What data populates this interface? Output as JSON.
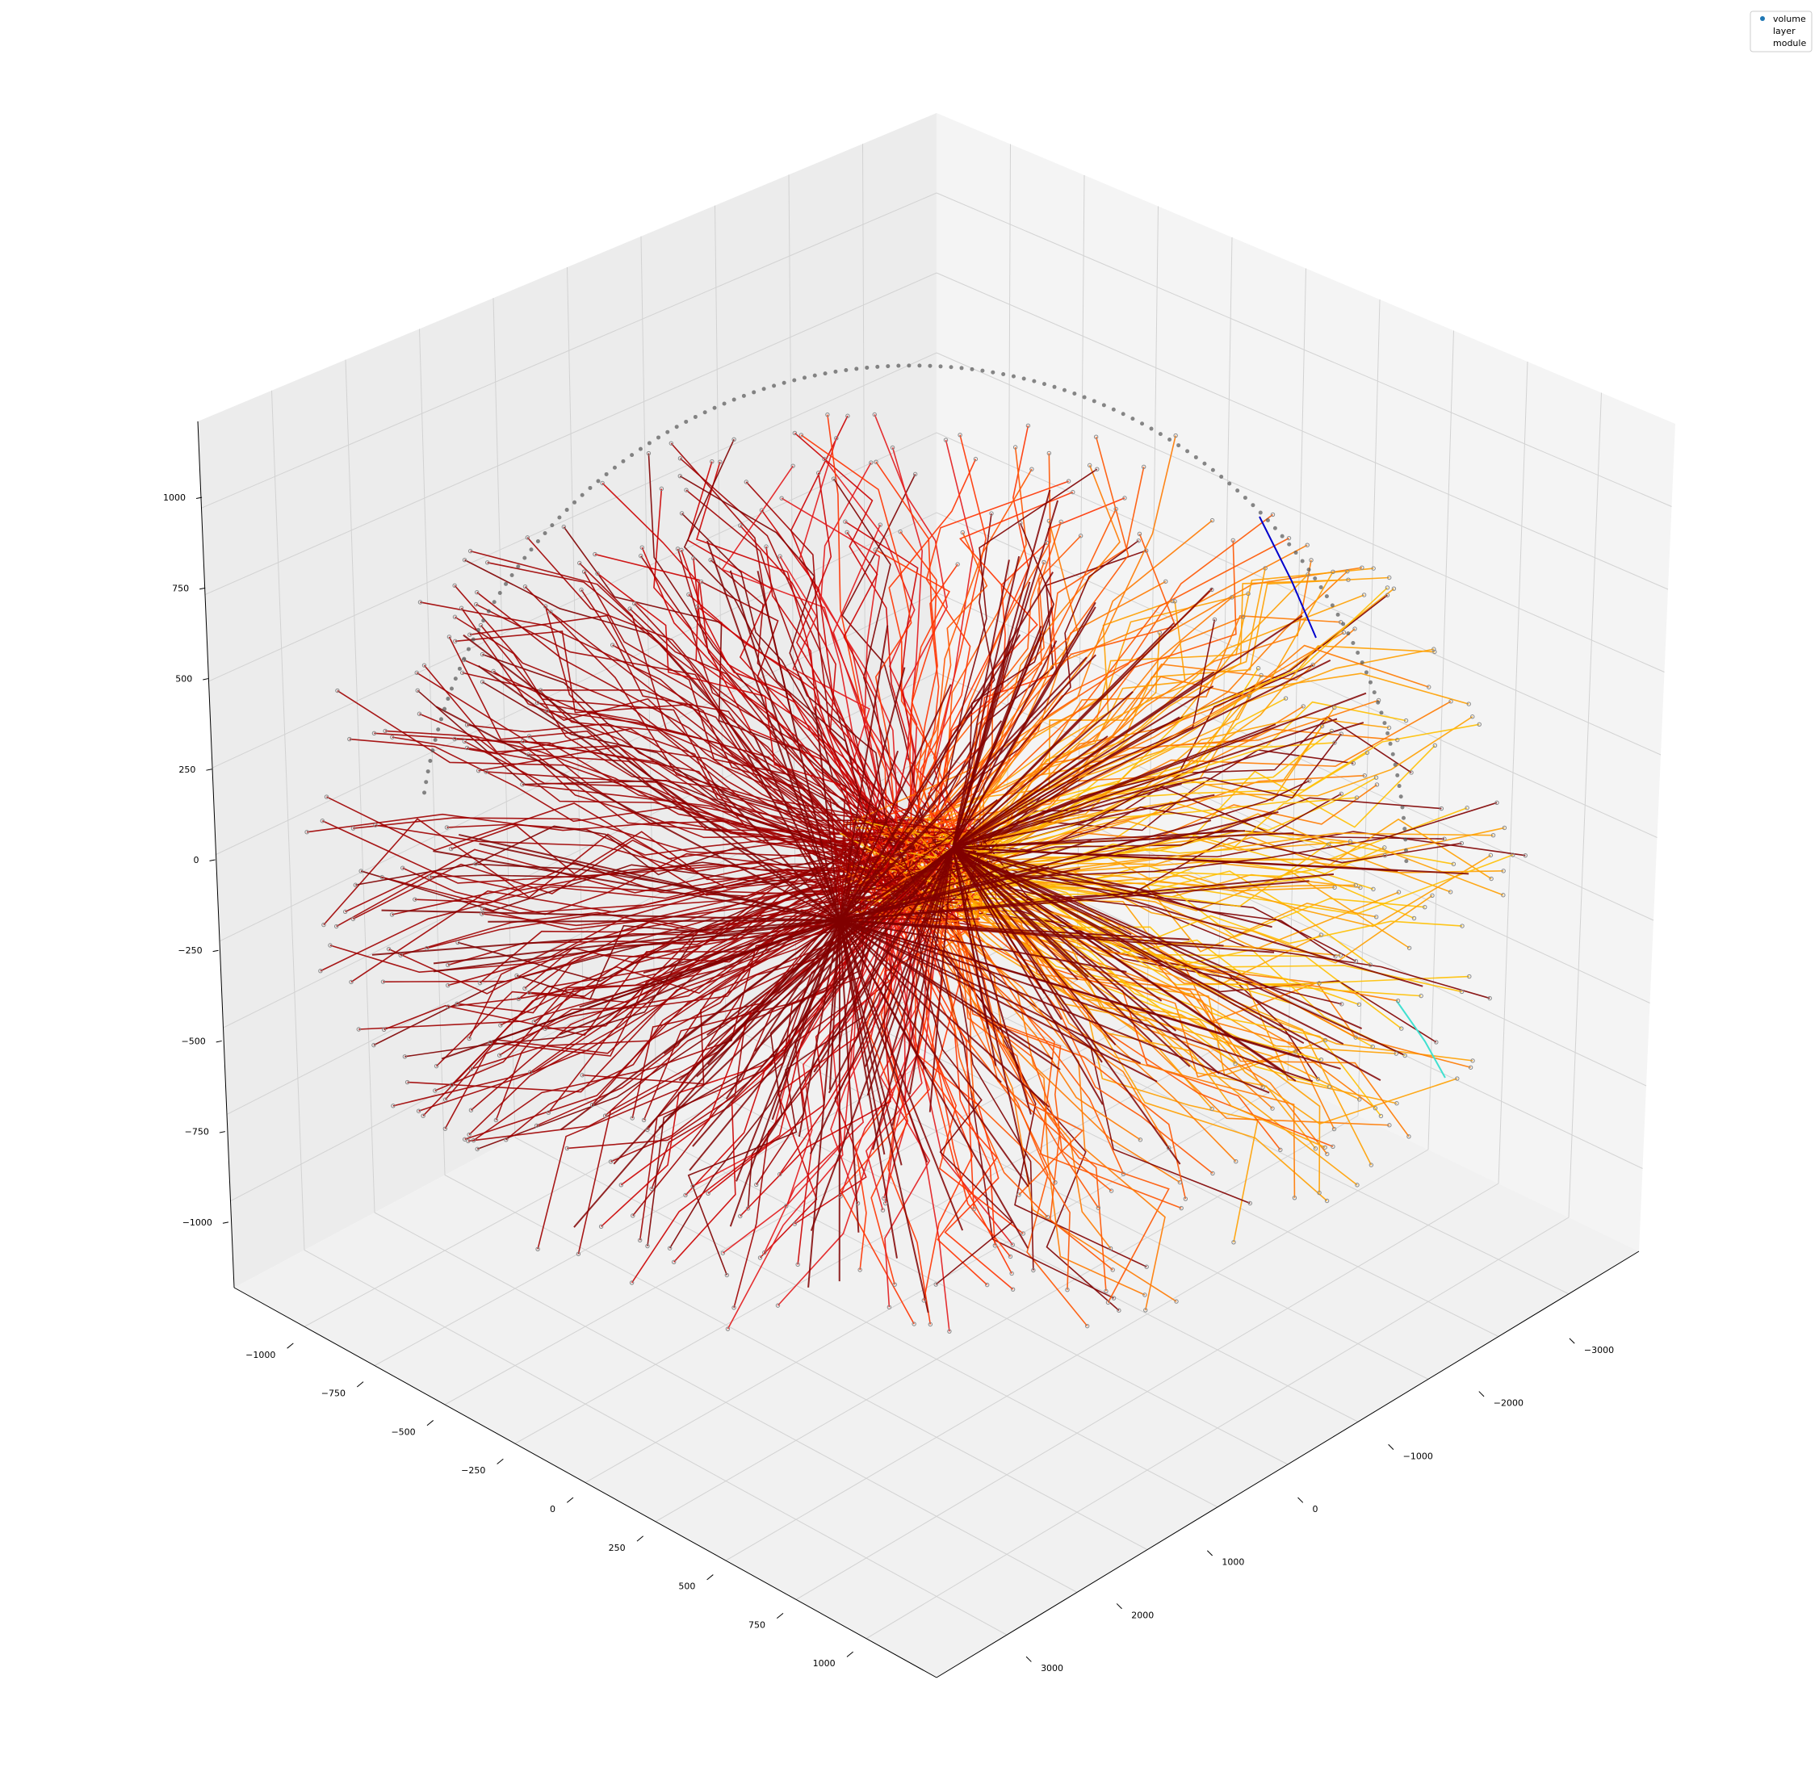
{
  "chart_data": {
    "type": "scatter",
    "projection": "3d",
    "title": "",
    "xlabel": "",
    "ylabel": "",
    "zlabel": "",
    "grid": true,
    "legend_placement": "top-right",
    "legend": [
      "volume",
      "layer",
      "module"
    ],
    "axes": {
      "x": {
        "ticks": [
          "−1000",
          "−750",
          "−500",
          "−250",
          "0",
          "250",
          "500",
          "750",
          "1000"
        ]
      },
      "y": {
        "ticks": [
          "−3000",
          "−2000",
          "−1000",
          "0",
          "1000",
          "2000",
          "3000"
        ]
      },
      "z": {
        "ticks": [
          "1000",
          "750",
          "500",
          "250",
          "0",
          "−250",
          "−500",
          "−750",
          "−1000"
        ]
      }
    },
    "colors": {
      "legend_marker": "#1f77b4",
      "track_colors": [
        "#800000",
        "#a00000",
        "#cc0000",
        "#e31a1c",
        "#ff3300",
        "#ff5500",
        "#ff7a00",
        "#ffa000",
        "#ffc000"
      ],
      "hit_marker": "#888888",
      "misc_lines": [
        "#0000cc",
        "#40e0d0"
      ]
    }
  }
}
